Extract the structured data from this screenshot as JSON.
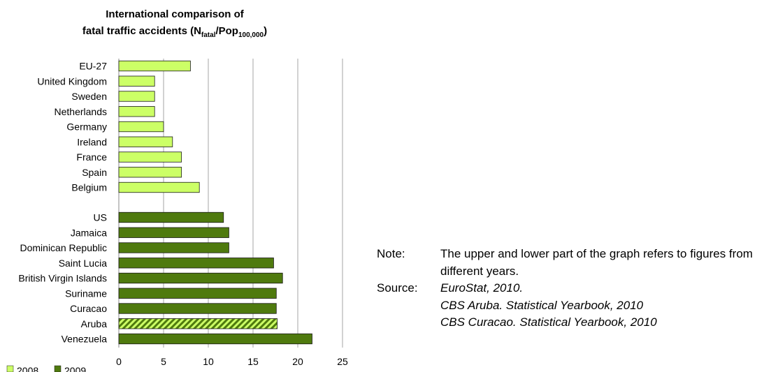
{
  "title": {
    "line1": "International comparison of",
    "line2_prefix": "fatal traffic accidents (N",
    "line2_sub1": "fatal",
    "line2_mid": "/Pop",
    "line2_sub2": "100,000",
    "line2_suffix": ")"
  },
  "notes": {
    "note_label": "Note:",
    "note_text": "The upper and lower part of the graph refers to figures from different years.",
    "source_label": "Source:",
    "sources": [
      "EuroStat, 2010.",
      "CBS Aruba. Statistical Yearbook, 2010",
      "CBS Curacao. Statistical Yearbook, 2010"
    ]
  },
  "chart_data": {
    "type": "bar",
    "orientation": "horizontal",
    "xlim": [
      0,
      25
    ],
    "xticks": [
      0,
      5,
      10,
      15,
      20,
      25
    ],
    "grid": "vertical",
    "legend": {
      "placement": "bottom-left"
    },
    "series": [
      {
        "name": "2008",
        "color": "#ccff66",
        "categories": [
          "EU-27",
          "United Kingdom",
          "Sweden",
          "Netherlands",
          "Germany",
          "Ireland",
          "France",
          "Spain",
          "Belgium"
        ],
        "values": [
          8,
          4,
          4,
          4,
          5,
          6,
          7,
          7,
          9
        ]
      },
      {
        "name": "2009",
        "color": "#4f7a0e",
        "categories": [
          "US",
          "Jamaica",
          "Dominican Republic",
          "Saint Lucia",
          "British Virgin Islands",
          "Suriname",
          "Curacao",
          "Aruba",
          "Venezuela"
        ],
        "values": [
          11.7,
          12.3,
          12.3,
          17.3,
          18.3,
          17.6,
          17.6,
          17.7,
          21.6
        ],
        "hatched": [
          "Aruba"
        ]
      }
    ]
  }
}
